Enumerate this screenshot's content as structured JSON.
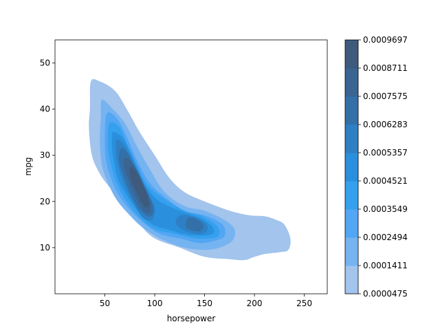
{
  "chart_data": {
    "type": "kde-contour",
    "xlabel": "horsepower",
    "ylabel": "mpg",
    "xlim": [
      0,
      273
    ],
    "ylim": [
      0,
      55
    ],
    "xticks": [
      50,
      100,
      150,
      200,
      250
    ],
    "yticks": [
      10,
      20,
      30,
      40,
      50
    ],
    "grid": false,
    "colorbar": {
      "position": "right",
      "levels": [
        "0.0000475",
        "0.0001411",
        "0.0002494",
        "0.0003549",
        "0.0004521",
        "0.0005357",
        "0.0006283",
        "0.0007575",
        "0.0008711",
        "0.0009697"
      ],
      "colors": [
        "#a2c4ed",
        "#76b3f1",
        "#52a6f3",
        "#34a0ee",
        "#2a8fdc",
        "#2e7fc4",
        "#3470a8",
        "#3a6492",
        "#3e5a7c",
        "#3e5269"
      ]
    },
    "contours": [
      {
        "level_index": 0,
        "polygon": [
          [
            36,
            46
          ],
          [
            45,
            46
          ],
          [
            60,
            44
          ],
          [
            72,
            40
          ],
          [
            85,
            35
          ],
          [
            100,
            30
          ],
          [
            115,
            25
          ],
          [
            130,
            22
          ],
          [
            150,
            20
          ],
          [
            175,
            18
          ],
          [
            195,
            17
          ],
          [
            210,
            16.8
          ],
          [
            222,
            16
          ],
          [
            230,
            15
          ],
          [
            236,
            12
          ],
          [
            234,
            9.5
          ],
          [
            225,
            9
          ],
          [
            210,
            8.6
          ],
          [
            200,
            8
          ],
          [
            190,
            7.3
          ],
          [
            175,
            7.5
          ],
          [
            150,
            8
          ],
          [
            125,
            10
          ],
          [
            100,
            12
          ],
          [
            85,
            15
          ],
          [
            70,
            19
          ],
          [
            55,
            23
          ],
          [
            45,
            26
          ],
          [
            37,
            30
          ],
          [
            34,
            36
          ],
          [
            35,
            40
          ],
          [
            36,
            46
          ]
        ]
      },
      {
        "level_index": 1,
        "polygon": [
          [
            47,
            42
          ],
          [
            58,
            40
          ],
          [
            70,
            37
          ],
          [
            82,
            32
          ],
          [
            95,
            27
          ],
          [
            110,
            22
          ],
          [
            130,
            19
          ],
          [
            150,
            18
          ],
          [
            170,
            16
          ],
          [
            180,
            14
          ],
          [
            178,
            11.5
          ],
          [
            165,
            10
          ],
          [
            150,
            9.5
          ],
          [
            130,
            10
          ],
          [
            110,
            11.5
          ],
          [
            90,
            14
          ],
          [
            75,
            17
          ],
          [
            60,
            21
          ],
          [
            48,
            27
          ],
          [
            45,
            33
          ],
          [
            46,
            38
          ],
          [
            47,
            42
          ]
        ]
      },
      {
        "level_index": 2,
        "polygon": [
          [
            52,
            39
          ],
          [
            62,
            38
          ],
          [
            72,
            34
          ],
          [
            82,
            29
          ],
          [
            95,
            24
          ],
          [
            110,
            21
          ],
          [
            130,
            18
          ],
          [
            150,
            17
          ],
          [
            168,
            15
          ],
          [
            170,
            12.5
          ],
          [
            160,
            11.5
          ],
          [
            145,
            11
          ],
          [
            125,
            12
          ],
          [
            105,
            13
          ],
          [
            88,
            15.5
          ],
          [
            72,
            19
          ],
          [
            60,
            23
          ],
          [
            52,
            28
          ],
          [
            50,
            33
          ],
          [
            52,
            39
          ]
        ]
      },
      {
        "level_index": 3,
        "polygon": [
          [
            55,
            37
          ],
          [
            65,
            36
          ],
          [
            73,
            32
          ],
          [
            82,
            28
          ],
          [
            93,
            23.5
          ],
          [
            110,
            20.5
          ],
          [
            130,
            18
          ],
          [
            148,
            16.8
          ],
          [
            163,
            14.5
          ],
          [
            164,
            12.5
          ],
          [
            155,
            12
          ],
          [
            140,
            12
          ],
          [
            120,
            13
          ],
          [
            100,
            14
          ],
          [
            85,
            16.5
          ],
          [
            72,
            20
          ],
          [
            62,
            24
          ],
          [
            55,
            29
          ],
          [
            53,
            33
          ],
          [
            55,
            37
          ]
        ]
      },
      {
        "level_index": 4,
        "polygon": [
          [
            58,
            35
          ],
          [
            67,
            34
          ],
          [
            75,
            31
          ],
          [
            83,
            27
          ],
          [
            92,
            23
          ],
          [
            105,
            20
          ],
          [
            125,
            18
          ],
          [
            145,
            16.5
          ],
          [
            158,
            14.5
          ],
          [
            158,
            13
          ],
          [
            148,
            12.6
          ],
          [
            132,
            12.8
          ],
          [
            115,
            13.8
          ],
          [
            98,
            15
          ],
          [
            85,
            17.5
          ],
          [
            73,
            21
          ],
          [
            63,
            25
          ],
          [
            58,
            30
          ],
          [
            57,
            33
          ],
          [
            58,
            35
          ]
        ]
      },
      {
        "level_index": 5,
        "polygon": [
          [
            62,
            33.5
          ],
          [
            70,
            32
          ],
          [
            77,
            29
          ],
          [
            85,
            25.5
          ],
          [
            95,
            21
          ],
          [
            100,
            18.5
          ],
          [
            97,
            16
          ],
          [
            88,
            16.5
          ],
          [
            78,
            20
          ],
          [
            68,
            24.5
          ],
          [
            62,
            29
          ],
          [
            61,
            31.5
          ],
          [
            62,
            33.5
          ]
        ]
      },
      {
        "level_index": 5,
        "polygon": [
          [
            126,
            17
          ],
          [
            140,
            16.6
          ],
          [
            152,
            15
          ],
          [
            151,
            13.3
          ],
          [
            140,
            13
          ],
          [
            127,
            14
          ],
          [
            121,
            15.5
          ],
          [
            126,
            17
          ]
        ]
      },
      {
        "level_index": 6,
        "polygon": [
          [
            66,
            31.5
          ],
          [
            73,
            30.5
          ],
          [
            80,
            27.5
          ],
          [
            88,
            24
          ],
          [
            97,
            20
          ],
          [
            99,
            17.5
          ],
          [
            93,
            16.8
          ],
          [
            84,
            18.5
          ],
          [
            75,
            22
          ],
          [
            68,
            26
          ],
          [
            64,
            29
          ],
          [
            66,
            31.5
          ]
        ]
      },
      {
        "level_index": 6,
        "polygon": [
          [
            134,
            16.5
          ],
          [
            144,
            16
          ],
          [
            149,
            14.5
          ],
          [
            144,
            13.5
          ],
          [
            134,
            14
          ],
          [
            131,
            15
          ],
          [
            134,
            16.5
          ]
        ]
      },
      {
        "level_index": 7,
        "polygon": [
          [
            70,
            29.5
          ],
          [
            77,
            28.5
          ],
          [
            84,
            26
          ],
          [
            91,
            22.5
          ],
          [
            96,
            19.5
          ],
          [
            95,
            17.5
          ],
          [
            89,
            18
          ],
          [
            81,
            21
          ],
          [
            74,
            24.5
          ],
          [
            69,
            27.5
          ],
          [
            70,
            29.5
          ]
        ]
      },
      {
        "level_index": 8,
        "polygon": [
          [
            75,
            27.5
          ],
          [
            81,
            26.5
          ],
          [
            87,
            24
          ],
          [
            93,
            21
          ],
          [
            94,
            19
          ],
          [
            89,
            19.2
          ],
          [
            82,
            22
          ],
          [
            76,
            25
          ],
          [
            75,
            27.5
          ]
        ]
      }
    ]
  }
}
